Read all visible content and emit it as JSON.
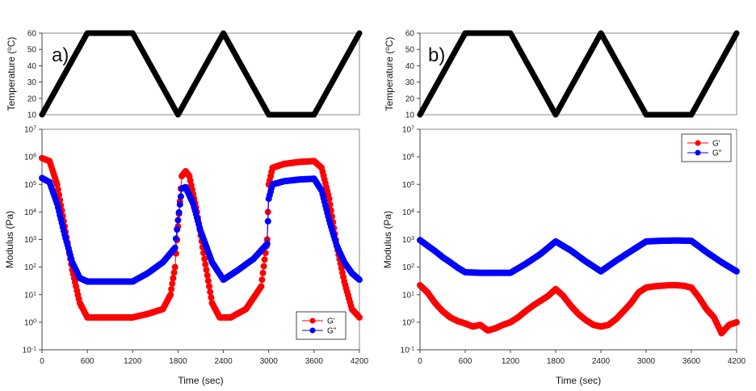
{
  "chart_data": [
    {
      "panel": "a",
      "type": "line",
      "panel_label": "a)",
      "temperature": {
        "ylabel": "Temperature (°C)",
        "ylabel_parts": {
          "pre": "Temperature (",
          "sup": "o",
          "post": "C)"
        },
        "ylim": [
          10,
          60
        ],
        "yticks": [
          "10",
          "20",
          "30",
          "40",
          "50",
          "60"
        ],
        "profile": [
          [
            0,
            10
          ],
          [
            600,
            60
          ],
          [
            1200,
            60
          ],
          [
            1800,
            10
          ],
          [
            2400,
            60
          ],
          [
            3000,
            10
          ],
          [
            3600,
            10
          ],
          [
            4200,
            60
          ]
        ],
        "color": "#000000"
      },
      "modulus": {
        "ylabel": "Modulus (Pa)",
        "yscale": "log",
        "ylim_exp": [
          -1,
          7
        ],
        "ytick_exponents": [
          "-1",
          "0",
          "1",
          "2",
          "3",
          "4",
          "5",
          "6",
          "7"
        ],
        "xlabel": "Time (sec)",
        "xlim": [
          0,
          4200
        ],
        "xticks": [
          "0",
          "600",
          "1200",
          "1800",
          "2400",
          "3000",
          "3600",
          "4200"
        ],
        "legend_position": "bottom-right",
        "series": [
          {
            "name": "G'",
            "color": "#ff0000",
            "points": [
              [
                0,
                900000
              ],
              [
                100,
                700000
              ],
              [
                200,
                100000
              ],
              [
                300,
                3000
              ],
              [
                400,
                80
              ],
              [
                500,
                5
              ],
              [
                600,
                1.5
              ],
              [
                800,
                1.5
              ],
              [
                1000,
                1.5
              ],
              [
                1200,
                1.5
              ],
              [
                1400,
                2
              ],
              [
                1600,
                3
              ],
              [
                1700,
                10
              ],
              [
                1760,
                100
              ],
              [
                1800,
                3000
              ],
              [
                1850,
                200000
              ],
              [
                1900,
                300000
              ],
              [
                1950,
                200000
              ],
              [
                2050,
                10000
              ],
              [
                2150,
                200
              ],
              [
                2250,
                5
              ],
              [
                2350,
                1.5
              ],
              [
                2500,
                1.5
              ],
              [
                2700,
                3
              ],
              [
                2900,
                20
              ],
              [
                2980,
                1000
              ],
              [
                3000,
                100000
              ],
              [
                3050,
                400000
              ],
              [
                3200,
                550000
              ],
              [
                3400,
                650000
              ],
              [
                3600,
                700000
              ],
              [
                3700,
                400000
              ],
              [
                3800,
                30000
              ],
              [
                3900,
                600
              ],
              [
                4000,
                30
              ],
              [
                4100,
                3
              ],
              [
                4200,
                1.5
              ]
            ]
          },
          {
            "name": "G\"",
            "color": "#0000ff",
            "points": [
              [
                0,
                170000
              ],
              [
                100,
                120000
              ],
              [
                200,
                20000
              ],
              [
                300,
                1500
              ],
              [
                400,
                150
              ],
              [
                500,
                40
              ],
              [
                600,
                30
              ],
              [
                900,
                30
              ],
              [
                1200,
                30
              ],
              [
                1400,
                60
              ],
              [
                1600,
                150
              ],
              [
                1760,
                500
              ],
              [
                1800,
                5000
              ],
              [
                1850,
                70000
              ],
              [
                1900,
                80000
              ],
              [
                2000,
                20000
              ],
              [
                2100,
                2000
              ],
              [
                2250,
                150
              ],
              [
                2400,
                35
              ],
              [
                2600,
                80
              ],
              [
                2800,
                200
              ],
              [
                2980,
                700
              ],
              [
                3000,
                30000
              ],
              [
                3050,
                100000
              ],
              [
                3200,
                130000
              ],
              [
                3400,
                150000
              ],
              [
                3600,
                160000
              ],
              [
                3700,
                60000
              ],
              [
                3800,
                5000
              ],
              [
                3900,
                600
              ],
              [
                4000,
                150
              ],
              [
                4100,
                60
              ],
              [
                4200,
                35
              ]
            ]
          }
        ]
      }
    },
    {
      "panel": "b",
      "type": "line",
      "panel_label": "b)",
      "temperature": {
        "ylabel": "Temperature (°C)",
        "ylabel_parts": {
          "pre": "Temperature (",
          "sup": "o",
          "post": "C)"
        },
        "ylim": [
          10,
          60
        ],
        "yticks": [
          "10",
          "20",
          "30",
          "40",
          "50",
          "60"
        ],
        "profile": [
          [
            0,
            10
          ],
          [
            600,
            60
          ],
          [
            1200,
            60
          ],
          [
            1800,
            10
          ],
          [
            2400,
            60
          ],
          [
            3000,
            10
          ],
          [
            3600,
            10
          ],
          [
            4200,
            60
          ]
        ],
        "color": "#000000"
      },
      "modulus": {
        "ylabel": "Modulus (Pa)",
        "yscale": "log",
        "ylim_exp": [
          -1,
          7
        ],
        "ytick_exponents": [
          "-1",
          "0",
          "1",
          "2",
          "3",
          "4",
          "5",
          "6",
          "7"
        ],
        "xlabel": "Time (sec)",
        "xlim": [
          0,
          4200
        ],
        "xticks": [
          "0",
          "600",
          "1200",
          "1800",
          "2400",
          "3000",
          "3600",
          "4200"
        ],
        "legend_position": "top-right",
        "series": [
          {
            "name": "G'",
            "color": "#ff0000",
            "points": [
              [
                0,
                22
              ],
              [
                100,
                12
              ],
              [
                200,
                5
              ],
              [
                300,
                2.5
              ],
              [
                400,
                1.5
              ],
              [
                500,
                1.1
              ],
              [
                600,
                0.9
              ],
              [
                700,
                0.7
              ],
              [
                800,
                0.8
              ],
              [
                900,
                0.5
              ],
              [
                1000,
                0.6
              ],
              [
                1100,
                0.8
              ],
              [
                1200,
                1.0
              ],
              [
                1300,
                1.5
              ],
              [
                1400,
                2.5
              ],
              [
                1500,
                4
              ],
              [
                1600,
                6
              ],
              [
                1700,
                9
              ],
              [
                1800,
                16
              ],
              [
                1900,
                9
              ],
              [
                2000,
                4
              ],
              [
                2100,
                2
              ],
              [
                2200,
                1.2
              ],
              [
                2300,
                0.8
              ],
              [
                2400,
                0.7
              ],
              [
                2500,
                0.8
              ],
              [
                2600,
                1.3
              ],
              [
                2700,
                2.5
              ],
              [
                2800,
                5
              ],
              [
                2900,
                12
              ],
              [
                3000,
                18
              ],
              [
                3100,
                20
              ],
              [
                3200,
                21
              ],
              [
                3300,
                22
              ],
              [
                3400,
                22
              ],
              [
                3500,
                21
              ],
              [
                3600,
                18
              ],
              [
                3700,
                8
              ],
              [
                3800,
                3
              ],
              [
                3900,
                1.5
              ],
              [
                4000,
                0.4
              ],
              [
                4100,
                0.8
              ],
              [
                4200,
                1.0
              ]
            ]
          },
          {
            "name": "G\"",
            "color": "#0000ff",
            "points": [
              [
                0,
                950
              ],
              [
                100,
                600
              ],
              [
                200,
                380
              ],
              [
                300,
                230
              ],
              [
                400,
                150
              ],
              [
                500,
                95
              ],
              [
                600,
                65
              ],
              [
                800,
                62
              ],
              [
                1000,
                62
              ],
              [
                1200,
                62
              ],
              [
                1400,
                130
              ],
              [
                1600,
                300
              ],
              [
                1800,
                850
              ],
              [
                2000,
                400
              ],
              [
                2200,
                160
              ],
              [
                2400,
                70
              ],
              [
                2600,
                170
              ],
              [
                2800,
                380
              ],
              [
                3000,
                850
              ],
              [
                3200,
                900
              ],
              [
                3400,
                920
              ],
              [
                3600,
                900
              ],
              [
                3800,
                350
              ],
              [
                4000,
                150
              ],
              [
                4200,
                70
              ]
            ]
          }
        ]
      }
    }
  ]
}
